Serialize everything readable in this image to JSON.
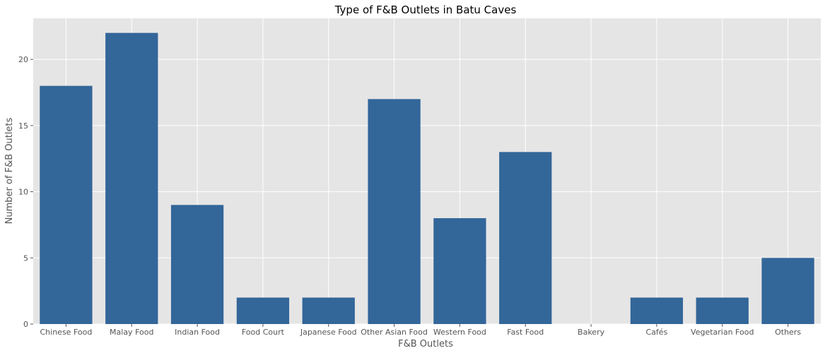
{
  "chart_data": {
    "type": "bar",
    "title": "Type of F&B Outlets in Batu Caves",
    "xlabel": "F&B Outlets",
    "ylabel": "Number of F&B Outlets",
    "categories": [
      "Chinese Food",
      "Malay Food",
      "Indian Food",
      "Food Court",
      "Japanese Food",
      "Other Asian Food",
      "Western Food",
      "Fast Food",
      "Bakery",
      "Cafés",
      "Vegetarian Food",
      "Others"
    ],
    "values": [
      18,
      22,
      9,
      2,
      2,
      17,
      8,
      13,
      0,
      2,
      2,
      5
    ],
    "yticks": [
      0,
      5,
      10,
      15,
      20
    ],
    "ylim": [
      0,
      23.1
    ],
    "grid": true,
    "colors": {
      "bar": "#336699",
      "plot_bg": "#e5e5e5",
      "grid": "#ffffff"
    }
  }
}
